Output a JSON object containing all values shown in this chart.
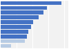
{
  "values": [
    76,
    58,
    54,
    48,
    41,
    38,
    35,
    33,
    30,
    13
  ],
  "bar_colors": [
    "#4472c4",
    "#4472c4",
    "#4472c4",
    "#4472c4",
    "#4472c4",
    "#4472c4",
    "#4472c4",
    "#4472c4",
    "#b8cce4",
    "#b8cce4"
  ],
  "background_color": "#ffffff",
  "plot_bg_color": "#f2f2f2",
  "xlim": [
    0,
    85
  ],
  "grid_color": "#ffffff",
  "bar_height": 0.75,
  "n_bars": 10
}
